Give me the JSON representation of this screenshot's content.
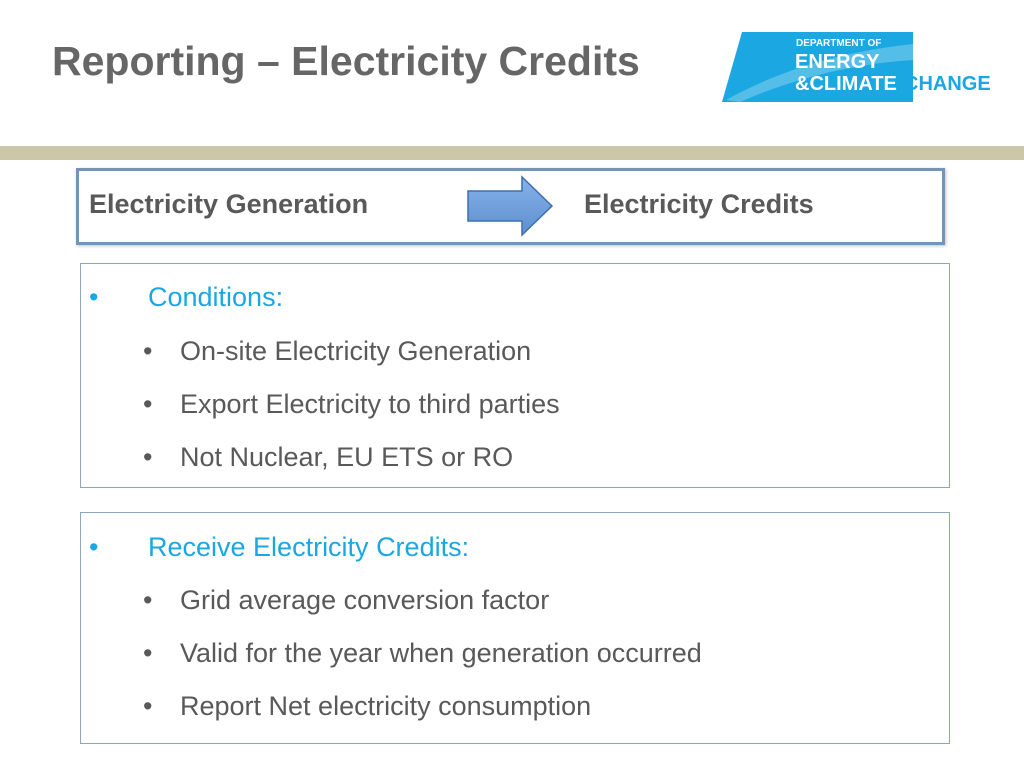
{
  "slide": {
    "title": "Reporting – Electricity Credits"
  },
  "logo": {
    "line1": "DEPARTMENT OF",
    "line2": "ENERGY",
    "line3a": "&CLIMATE",
    "line3b": "CHANGE",
    "colors": {
      "tile": "#1ba7e1",
      "text_on_tile": "#ffffff",
      "change": "#1ba7e1"
    }
  },
  "flow": {
    "left_label": "Electricity Generation",
    "right_label": "Electricity Credits",
    "arrow_icon": "arrow-right-icon",
    "arrow_color": "#6a9bd8"
  },
  "conditions": {
    "bullet": "•",
    "heading": "Conditions:",
    "sub_bullet": "•",
    "items": [
      "On-site Electricity Generation",
      "Export Electricity to third parties",
      "Not Nuclear, EU ETS or RO"
    ]
  },
  "credits": {
    "bullet": "•",
    "heading": "Receive Electricity Credits:",
    "sub_bullet": "•",
    "items": [
      "Grid average conversion factor",
      "Valid for the year when generation occurred",
      "Report Net electricity consumption"
    ]
  },
  "colors": {
    "title": "#666666",
    "heading": "#1ba7e1",
    "body_text": "#595959",
    "rule": "#cbc7a8",
    "flow_border": "#7494b8",
    "panel_border": "#8ea6c2"
  }
}
